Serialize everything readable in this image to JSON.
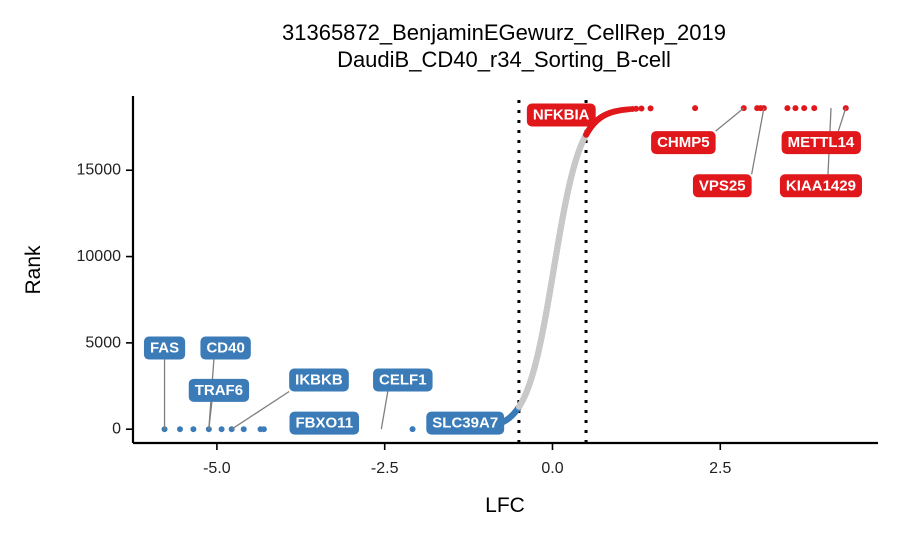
{
  "chart_data": {
    "type": "scatter",
    "title": "31365872_BenjaminEGewurz_CellRep_2019",
    "subtitle": "DaudiB_CD40_r34_Sorting_B-cell",
    "xlabel": "LFC",
    "ylabel": "Rank",
    "xlim": [
      -6.25,
      4.85
    ],
    "ylim": [
      -800,
      19300
    ],
    "xticks": [
      -5.0,
      -2.5,
      0.0,
      2.5
    ],
    "xtick_labels": [
      "-5.0",
      "-2.5",
      "0.0",
      "2.5"
    ],
    "yticks": [
      0,
      5000,
      10000,
      15000
    ],
    "ytick_labels": [
      "0",
      "5000",
      "10000",
      "15000"
    ],
    "thresholds": [
      -0.5,
      0.5
    ],
    "grid": false,
    "legend": "none",
    "colors": {
      "negative": "#3a7bb8",
      "neutral": "#c8c8c8",
      "positive": "#e0181c",
      "label_line": "#7f7f7f",
      "axis": "#000000"
    },
    "curve": {
      "total_rank": 18600,
      "midpoint_lfc": 0.02,
      "scale": 0.2
    },
    "outliers_low": [
      {
        "x": -5.78,
        "y": 0
      },
      {
        "x": -5.55,
        "y": 0
      },
      {
        "x": -5.35,
        "y": 0
      },
      {
        "x": -5.12,
        "y": 0
      },
      {
        "x": -4.93,
        "y": 0
      },
      {
        "x": -4.78,
        "y": 0
      },
      {
        "x": -4.6,
        "y": 0
      },
      {
        "x": -4.35,
        "y": 0
      },
      {
        "x": -4.3,
        "y": 0
      }
    ],
    "outliers_high": [
      {
        "x": 2.85,
        "y": 18600
      },
      {
        "x": 3.05,
        "y": 18600
      },
      {
        "x": 3.1,
        "y": 18600
      },
      {
        "x": 3.15,
        "y": 18600
      },
      {
        "x": 3.5,
        "y": 18600
      },
      {
        "x": 3.62,
        "y": 18600
      },
      {
        "x": 3.75,
        "y": 18600
      },
      {
        "x": 3.9,
        "y": 18600
      },
      {
        "x": 4.37,
        "y": 18600
      }
    ],
    "labels": [
      {
        "text": "FAS",
        "x": -5.78,
        "y": 0,
        "lx": -5.78,
        "ly": 4700,
        "color": "negative"
      },
      {
        "text": "CD40",
        "x": -5.12,
        "y": 0,
        "lx": -4.87,
        "ly": 4700,
        "color": "negative"
      },
      {
        "text": "TRAF6",
        "x": -5.12,
        "y": 0,
        "lx": -4.97,
        "ly": 2250,
        "color": "negative"
      },
      {
        "text": "IKBKB",
        "x": -4.78,
        "y": 0,
        "lx": -3.48,
        "ly": 2850,
        "color": "negative"
      },
      {
        "text": "CELF1",
        "x": -2.55,
        "y": 0,
        "lx": -2.23,
        "ly": 2850,
        "color": "negative"
      },
      {
        "text": "FBXO11",
        "x": -3.4,
        "y": 0,
        "lx": -3.4,
        "ly": 350,
        "color": "negative"
      },
      {
        "text": "SLC39A7",
        "x": -1.3,
        "y": 0,
        "lx": -1.3,
        "ly": 350,
        "color": "negative"
      },
      {
        "text": "NFKBIA",
        "x": 0.5,
        "y": 18000,
        "lx": 0.13,
        "ly": 18200,
        "color": "positive"
      },
      {
        "text": "CHMP5",
        "x": 2.85,
        "y": 18600,
        "lx": 1.95,
        "ly": 16600,
        "color": "positive"
      },
      {
        "text": "METTL14",
        "x": 4.37,
        "y": 18600,
        "lx": 4.0,
        "ly": 16600,
        "color": "positive"
      },
      {
        "text": "VPS25",
        "x": 3.15,
        "y": 18600,
        "lx": 2.53,
        "ly": 14100,
        "color": "positive"
      },
      {
        "text": "KIAA1429",
        "x": 4.15,
        "y": 18600,
        "lx": 4.0,
        "ly": 14100,
        "color": "positive"
      }
    ]
  }
}
